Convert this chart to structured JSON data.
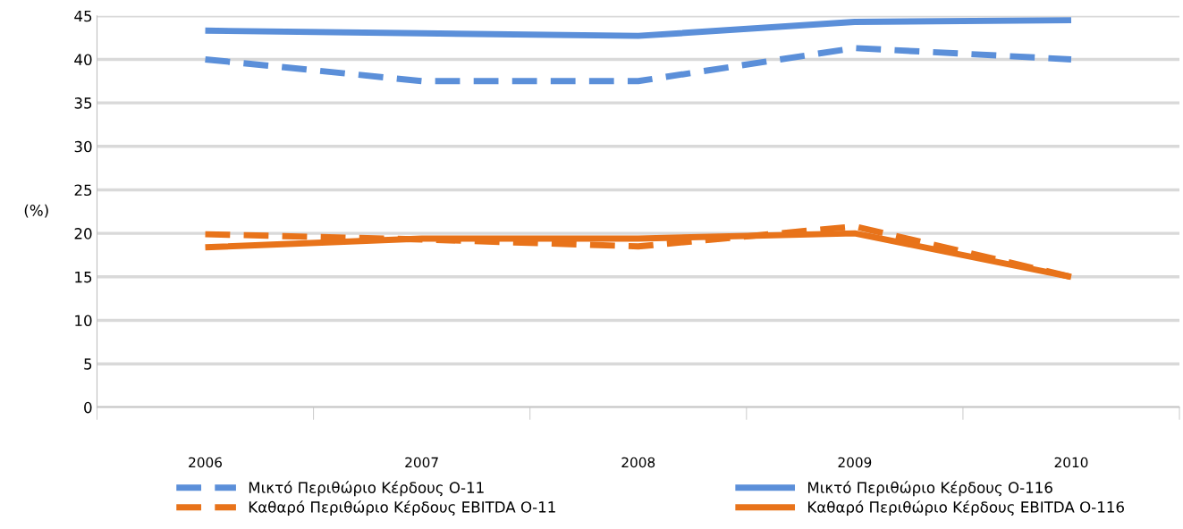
{
  "chart_data": {
    "type": "line",
    "ylabel": "(%)",
    "categories": [
      "2006",
      "2007",
      "2008",
      "2009",
      "2010"
    ],
    "series": [
      {
        "name": "Μικτό Περιθώριο Κέρδους Ο-11",
        "color": "#5b8fd9",
        "line_style": "dashed",
        "values": [
          40,
          37.5,
          37.5,
          41.3,
          40
        ]
      },
      {
        "name": "Καθαρό Περιθώριο Κέρδους EBITDA Ο-11",
        "color": "#e8731a",
        "line_style": "dashed",
        "values": [
          19.9,
          19.3,
          18.5,
          20.8,
          15
        ]
      },
      {
        "name": "Μικτό Περιθώριο Κέρδους Ο-116",
        "color": "#5b8fd9",
        "line_style": "solid",
        "values": [
          43.3,
          43,
          42.7,
          44.3,
          44.5
        ]
      },
      {
        "name": "Καθαρό Περιθώριο Κέρδους EBITDA Ο-116",
        "color": "#e8731a",
        "line_style": "solid",
        "values": [
          18.4,
          19.4,
          19.4,
          20,
          15
        ]
      }
    ],
    "ylim": [
      0,
      45
    ],
    "yticks": [
      0,
      5,
      10,
      15,
      20,
      25,
      30,
      35,
      40,
      45
    ],
    "grid": "y",
    "legend": "bottom",
    "marker": "none"
  }
}
